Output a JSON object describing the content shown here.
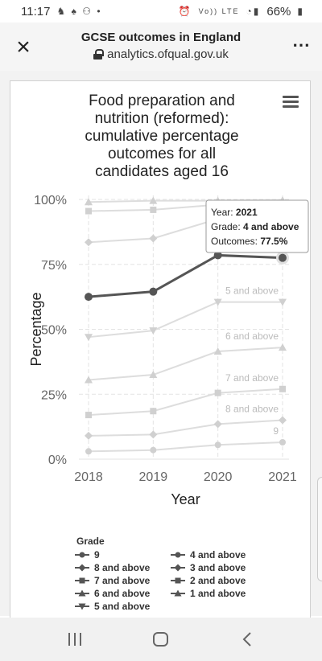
{
  "status_bar": {
    "time": "11:17",
    "left_icons": "♞ ♠ ⚇ •",
    "network": "Vo)) LTE",
    "battery": "66%"
  },
  "title_bar": {
    "title": "GCSE outcomes in England",
    "url": "analytics.ofqual.gov.uk",
    "close_symbol": "×",
    "more_symbol": "•••"
  },
  "chart_data": {
    "type": "line",
    "title": "Food preparation and nutrition (reformed): cumulative percentage outcomes for all candidates aged 16",
    "title_lines": [
      "Food preparation and",
      "nutrition (reformed):",
      "cumulative percentage",
      "outcomes for all",
      "candidates aged 16"
    ],
    "xlabel": "Year",
    "ylabel": "Percentage",
    "x": [
      "2018",
      "2019",
      "2020",
      "2021"
    ],
    "ylim": [
      0,
      100
    ],
    "y_ticks": [
      "0%",
      "25%",
      "50%",
      "75%",
      "100%"
    ],
    "grid": true,
    "legend_position": "bottom",
    "legend_title": "Grade",
    "series": [
      {
        "name": "9",
        "values": [
          3,
          3.5,
          5.5,
          6.5
        ],
        "marker": "circle",
        "label": "9",
        "highlight": false
      },
      {
        "name": "8 and above",
        "values": [
          9,
          9.5,
          13.5,
          15
        ],
        "marker": "diamond",
        "label": "8 and above",
        "highlight": false
      },
      {
        "name": "7 and above",
        "values": [
          17,
          18.5,
          25.5,
          27
        ],
        "marker": "square",
        "label": "7 and above",
        "highlight": false
      },
      {
        "name": "6 and above",
        "values": [
          30.5,
          32.5,
          41.5,
          43
        ],
        "marker": "triangle",
        "label": "6 and above",
        "highlight": false
      },
      {
        "name": "5 and above",
        "values": [
          47,
          49.5,
          60.5,
          60.5
        ],
        "marker": "triangle-down",
        "label": "5 and above",
        "highlight": false
      },
      {
        "name": "4 and above",
        "values": [
          62.5,
          64.5,
          78.5,
          77.5
        ],
        "marker": "circle",
        "label": "4 and above",
        "highlight": true
      },
      {
        "name": "3 and above",
        "values": [
          83.5,
          85,
          92.5,
          93.5
        ],
        "marker": "diamond",
        "label": "",
        "highlight": false
      },
      {
        "name": "2 and above",
        "values": [
          95.5,
          96,
          98,
          98.5
        ],
        "marker": "square",
        "label": "",
        "highlight": false
      },
      {
        "name": "1 and above",
        "values": [
          99,
          99.5,
          99.5,
          99.7
        ],
        "marker": "triangle",
        "label": "",
        "highlight": false
      }
    ],
    "legend_order": [
      "9",
      "8 and above",
      "7 and above",
      "6 and above",
      "5 and above",
      "4 and above",
      "3 and above",
      "2 and above",
      "1 and above"
    ],
    "tooltip": {
      "year_label": "Year: ",
      "year": "2021",
      "grade_label": "Grade: ",
      "grade": "4 and above",
      "outcome_label": "Outcomes: ",
      "outcome": "77.5%"
    }
  }
}
